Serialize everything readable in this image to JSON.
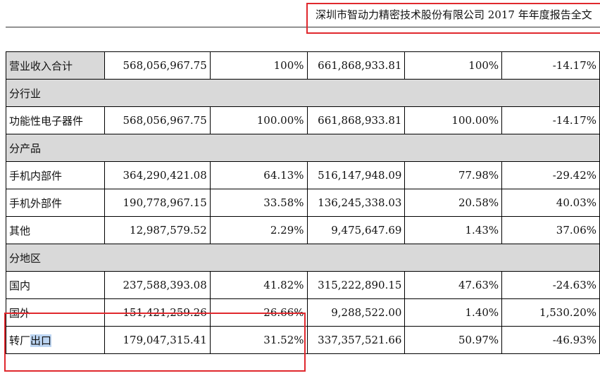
{
  "header": {
    "title": "深圳市智动力精密技术股份有限公司 2017 年年度报告全文"
  },
  "table": {
    "rows": [
      {
        "type": "total",
        "name": "营业收入合计",
        "cur_amount": "568,056,967.75",
        "cur_pct": "100%",
        "prev_amount": "661,868,933.81",
        "prev_pct": "100%",
        "change": "-14.17%"
      },
      {
        "type": "section",
        "name": "分行业"
      },
      {
        "type": "data",
        "name": "功能性电子器件",
        "cur_amount": "568,056,967.75",
        "cur_pct": "100.00%",
        "prev_amount": "661,868,933.81",
        "prev_pct": "100.00%",
        "change": "-14.17%"
      },
      {
        "type": "section",
        "name": "分产品"
      },
      {
        "type": "data",
        "name": "手机内部件",
        "cur_amount": "364,290,421.08",
        "cur_pct": "64.13%",
        "prev_amount": "516,147,948.09",
        "prev_pct": "77.98%",
        "change": "-29.42%"
      },
      {
        "type": "data",
        "name": "手机外部件",
        "cur_amount": "190,778,967.15",
        "cur_pct": "33.58%",
        "prev_amount": "136,245,338.03",
        "prev_pct": "20.58%",
        "change": "40.03%"
      },
      {
        "type": "data",
        "name": "其他",
        "cur_amount": "12,987,579.52",
        "cur_pct": "2.29%",
        "prev_amount": "9,475,647.69",
        "prev_pct": "1.43%",
        "change": "37.06%"
      },
      {
        "type": "section",
        "name": "分地区"
      },
      {
        "type": "data",
        "name": "国内",
        "cur_amount": "237,588,393.08",
        "cur_pct": "41.82%",
        "prev_amount": "315,222,890.15",
        "prev_pct": "47.63%",
        "change": "-24.63%"
      },
      {
        "type": "data",
        "name": "国外",
        "cur_amount": "151,421,259.26",
        "cur_pct": "26.66%",
        "prev_amount": "9,288,522.00",
        "prev_pct": "1.40%",
        "change": "1,530.20%"
      },
      {
        "type": "data",
        "name": "转厂出口",
        "name_plain": "转厂",
        "name_selected": "出口",
        "cur_amount": "179,047,315.41",
        "cur_pct": "31.52%",
        "prev_amount": "337,357,521.66",
        "prev_pct": "50.97%",
        "change": "-46.93%"
      }
    ]
  },
  "colors": {
    "highlight_border": "#e0282d",
    "section_background": "#d9d9d9",
    "text_selection": "#bcd5f2"
  }
}
